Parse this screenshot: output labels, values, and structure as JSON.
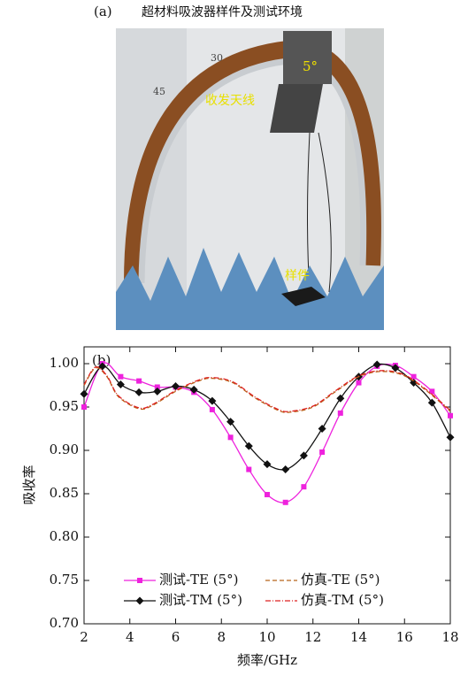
{
  "photo": {
    "label": "(a)",
    "title": "超材料吸波器样件及测试环境",
    "angle_label": "5°",
    "antenna_label": "收发天线",
    "sample_label": "样件",
    "scale_labels": [
      "45",
      "30"
    ]
  },
  "chart_data": {
    "type": "line",
    "panel_label": "(b)",
    "x_label": "频率/GHz",
    "y_label": "吸收率",
    "xlim": [
      2,
      18
    ],
    "xticks": [
      2,
      4,
      6,
      8,
      10,
      12,
      14,
      16,
      18
    ],
    "ylim": [
      0.7,
      1.0
    ],
    "yticks": [
      {
        "value": 0.7,
        "label": "0.70"
      },
      0.75,
      {
        "value": 0.8,
        "label": "0.80"
      },
      0.85,
      {
        "value": 0.9,
        "label": "0.90"
      },
      0.95,
      {
        "value": 1.0,
        "label": "1.00"
      }
    ],
    "series": [
      {
        "name": "测试-TE (5°)",
        "color": "#ee22dd",
        "marker": "square",
        "dash": "",
        "x": [
          2,
          2.8,
          3.6,
          4.4,
          5.2,
          6.0,
          6.8,
          7.6,
          8.4,
          9.2,
          10.0,
          10.8,
          11.6,
          12.4,
          13.2,
          14.0,
          14.8,
          15.6,
          16.4,
          17.2,
          18.0
        ],
        "values": [
          0.95,
          1.0,
          0.985,
          0.98,
          0.973,
          0.973,
          0.967,
          0.947,
          0.915,
          0.878,
          0.849,
          0.84,
          0.858,
          0.898,
          0.943,
          0.978,
          0.997,
          0.998,
          0.985,
          0.968,
          0.94
        ]
      },
      {
        "name": "测试-TM (5°)",
        "color": "#111111",
        "marker": "diamond",
        "dash": "",
        "x": [
          2,
          2.8,
          3.6,
          4.4,
          5.2,
          6.0,
          6.8,
          7.6,
          8.4,
          9.2,
          10.0,
          10.8,
          11.6,
          12.4,
          13.2,
          14.0,
          14.8,
          15.6,
          16.4,
          17.2,
          18.0
        ],
        "values": [
          0.965,
          0.997,
          0.976,
          0.967,
          0.968,
          0.974,
          0.97,
          0.957,
          0.933,
          0.905,
          0.884,
          0.878,
          0.894,
          0.925,
          0.96,
          0.985,
          0.999,
          0.995,
          0.978,
          0.955,
          0.915
        ]
      },
      {
        "name": "仿真-TE (5°)",
        "color": "#b8651a",
        "marker": "none",
        "dash": "5,3",
        "x": [
          2,
          2.5,
          3,
          3.5,
          4.4,
          5,
          6,
          7,
          7.6,
          8.5,
          9.5,
          10.5,
          11,
          12,
          13,
          14,
          15,
          16,
          17,
          18
        ],
        "values": [
          0.975,
          0.995,
          0.985,
          0.962,
          0.948,
          0.952,
          0.968,
          0.98,
          0.983,
          0.978,
          0.96,
          0.946,
          0.944,
          0.95,
          0.968,
          0.985,
          0.991,
          0.986,
          0.968,
          0.945
        ]
      },
      {
        "name": "仿真-TM (5°)",
        "color": "#dd2222",
        "marker": "none",
        "dash": "6,2,1,2",
        "x": [
          2,
          2.5,
          3,
          3.5,
          4.4,
          5,
          6,
          7,
          7.6,
          8.5,
          9.5,
          10.5,
          11,
          12,
          13,
          14,
          15,
          16,
          17,
          18
        ],
        "values": [
          0.976,
          0.996,
          0.986,
          0.963,
          0.949,
          0.953,
          0.969,
          0.981,
          0.984,
          0.979,
          0.961,
          0.947,
          0.945,
          0.951,
          0.969,
          0.986,
          0.992,
          0.987,
          0.969,
          0.946
        ]
      }
    ]
  }
}
